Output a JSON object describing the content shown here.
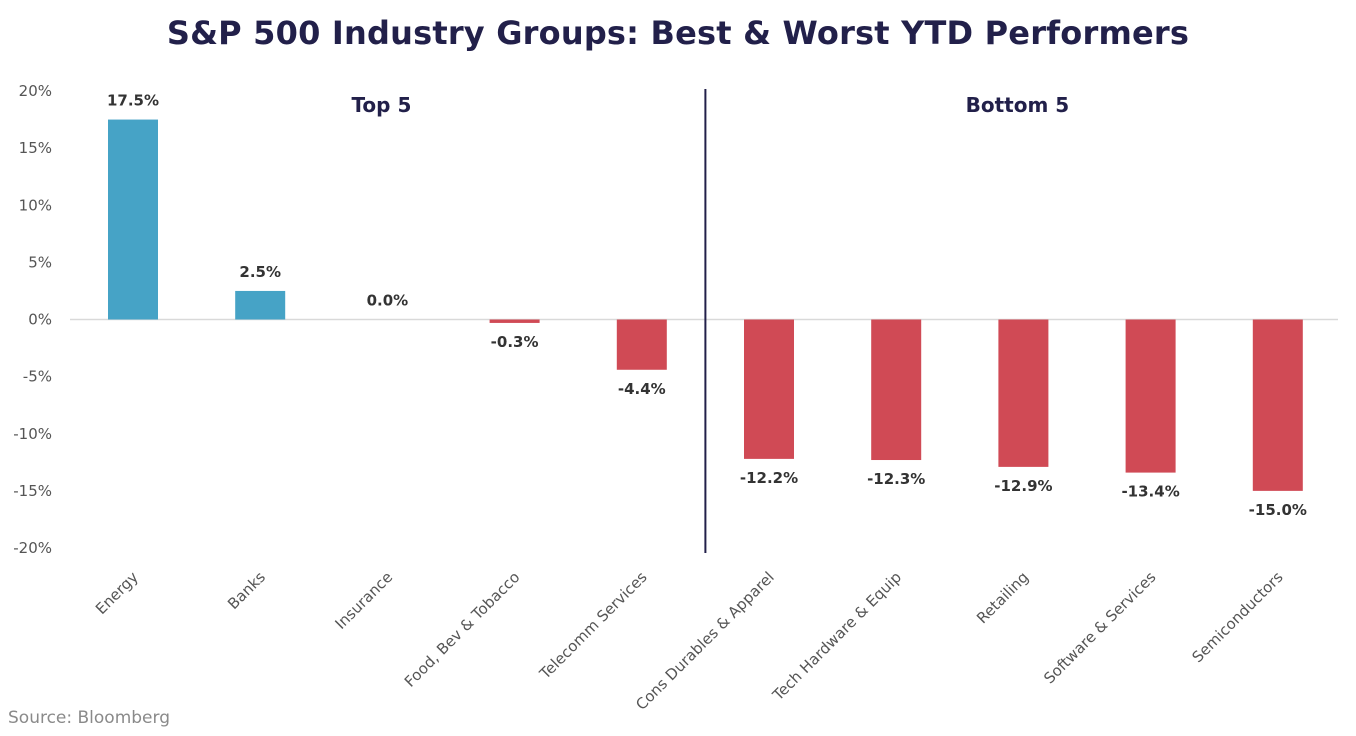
{
  "chart_data": {
    "type": "bar",
    "title": "S&P 500 Industry Groups: Best & Worst YTD Performers",
    "categories": [
      "Energy",
      "Banks",
      "Insurance",
      "Food, Bev & Tobacco",
      "Telecomm Services",
      "Cons Durables & Apparel",
      "Tech Hardware & Equip",
      "Retailing",
      "Software & Services",
      "Semiconductors"
    ],
    "values": [
      17.5,
      2.5,
      0.0,
      -0.3,
      -4.4,
      -12.2,
      -12.3,
      -12.9,
      -13.4,
      -15.0
    ],
    "data_labels": [
      "17.5%",
      "2.5%",
      "0.0%",
      "-0.3%",
      "-4.4%",
      "-12.2%",
      "-12.3%",
      "-12.9%",
      "-13.4%",
      "-15.0%"
    ],
    "ylim": [
      -20,
      20
    ],
    "yticks": [
      20,
      15,
      10,
      5,
      0,
      -5,
      -10,
      -15,
      -20
    ],
    "ytick_labels": [
      "20%",
      "15%",
      "10%",
      "5%",
      "0%",
      "-5%",
      "-10%",
      "-15%",
      "-20%"
    ],
    "section_labels": [
      "Top 5",
      "Bottom 5"
    ],
    "colors": {
      "positive": "#46a3c6",
      "negative": "#d04a55",
      "divider": "#22204a",
      "zero_line": "#d9d9d9"
    },
    "grid": false,
    "xlabel": "",
    "ylabel": ""
  },
  "source": "Source: Bloomberg"
}
